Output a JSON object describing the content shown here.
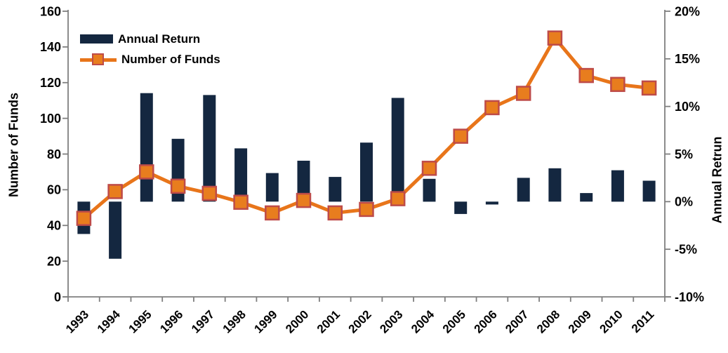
{
  "chart_data": {
    "type": "combo",
    "categories": [
      "1993",
      "1994",
      "1995",
      "1996",
      "1997",
      "1998",
      "1999",
      "2000",
      "2001",
      "2002",
      "2003",
      "2004",
      "2005",
      "2006",
      "2007",
      "2008",
      "2009",
      "2010",
      "2011"
    ],
    "series": [
      {
        "name": "Annual Return",
        "type": "bar",
        "axis": "right",
        "unit": "%",
        "values": [
          -3.4,
          -6.0,
          11.4,
          6.6,
          11.2,
          5.6,
          3.0,
          4.3,
          2.6,
          6.2,
          10.9,
          2.4,
          -1.3,
          -0.3,
          2.5,
          3.5,
          0.9,
          3.3,
          2.2
        ]
      },
      {
        "name": "Number of Funds",
        "type": "line",
        "axis": "left",
        "values": [
          44,
          59,
          70,
          62,
          58,
          53,
          47,
          54,
          47,
          49,
          55,
          72,
          90,
          106,
          114,
          145,
          124,
          119,
          117
        ]
      }
    ],
    "left_axis": {
      "title": "Number of Funds",
      "min": 0,
      "max": 160,
      "tick_step": 20,
      "tick_labels": [
        "0",
        "20",
        "40",
        "60",
        "80",
        "100",
        "120",
        "140",
        "160"
      ]
    },
    "right_axis": {
      "title": "Annual Retrun",
      "min": -10,
      "max": 20,
      "tick_step": 5,
      "tick_labels": [
        "-10%",
        "-5%",
        "0%",
        "5%",
        "10%",
        "15%",
        "20%"
      ]
    },
    "legend": {
      "position": "top-left"
    },
    "grid": false
  },
  "colors": {
    "bar": "#142740",
    "line": "#E8751A",
    "marker_fill": "#E87D1E",
    "marker_border": "#BE4B48",
    "axis": "#7F7F7F",
    "text": "#000000"
  }
}
